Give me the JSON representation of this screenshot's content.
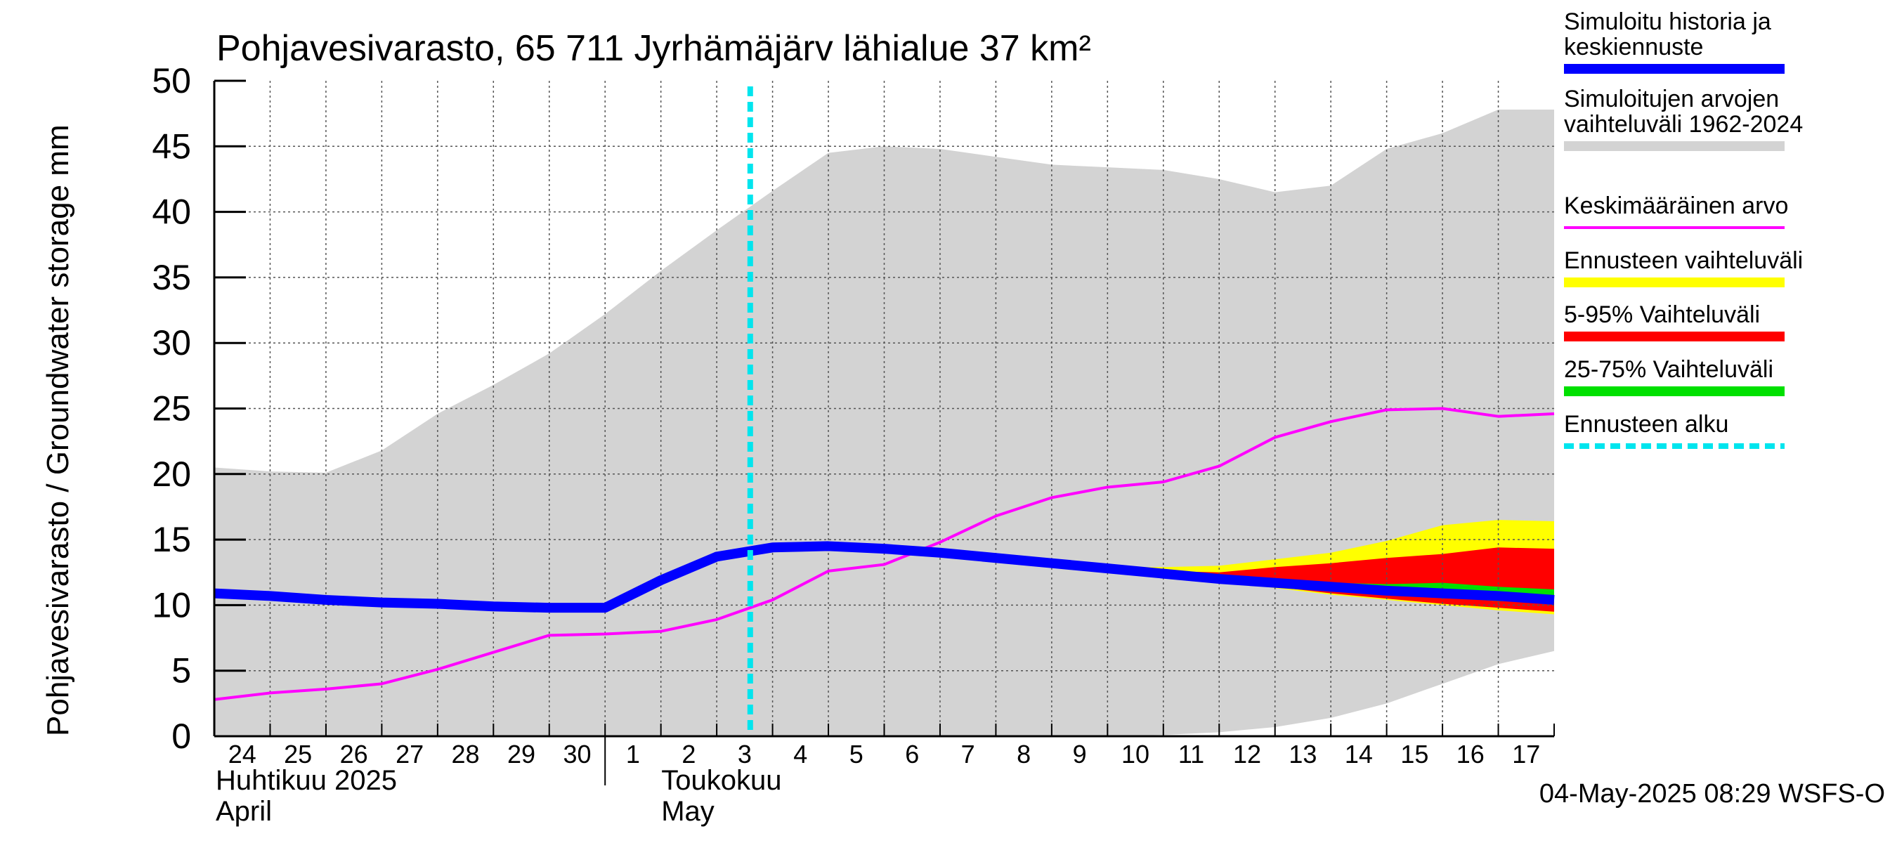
{
  "chart_data": {
    "type": "area",
    "title": "Pohjavesivarasto, 65 711 Jyrhämäjärv lähialue 37 km²",
    "ylabel": "Pohjavesivarasto / Groundwater storage   mm",
    "ylim": [
      0,
      50
    ],
    "yticks": [
      "0",
      "5",
      "10",
      "15",
      "20",
      "25",
      "30",
      "35",
      "40",
      "45",
      "50"
    ],
    "grid": true,
    "legend_position": "right",
    "x_start": "2025-04-24",
    "x_end": "2025-05-18",
    "x_tick_labels": [
      "24",
      "25",
      "26",
      "27",
      "28",
      "29",
      "30",
      "1",
      "2",
      "3",
      "4",
      "5",
      "6",
      "7",
      "8",
      "9",
      "10",
      "11",
      "12",
      "13",
      "14",
      "15",
      "16",
      "17"
    ],
    "x_month_labels": [
      {
        "fi": "Huhtikuu  2025",
        "en": "April"
      },
      {
        "fi": "Toukokuu",
        "en": "May"
      }
    ],
    "forecast_start": "2025-05-04",
    "footer": "04-May-2025 08:29 WSFS-O",
    "legend": [
      {
        "label": "Simuloitu historia ja keskiennuste",
        "color": "#0000ff"
      },
      {
        "label": "Simuloitujen arvojen vaihteluväli 1962-2024",
        "color": "#d3d3d3"
      },
      {
        "label": "Keskimääräinen arvo",
        "color": "#ff00ff"
      },
      {
        "label": "Ennusteen vaihteluväli",
        "color": "#ffff00"
      },
      {
        "label": "5-95% Vaihteluväli",
        "color": "#ff0000"
      },
      {
        "label": "25-75% Vaihteluväli",
        "color": "#00e000"
      },
      {
        "label": "Ennusteen alku",
        "color": "#00e5ee"
      }
    ],
    "series": [
      {
        "name": "Simuloitujen arvojen vaihteluväli 1962-2024",
        "kind": "band",
        "x": [
          "2025-04-24",
          "2025-04-25",
          "2025-04-26",
          "2025-04-27",
          "2025-04-28",
          "2025-04-29",
          "2025-04-30",
          "2025-05-01",
          "2025-05-02",
          "2025-05-03",
          "2025-05-04",
          "2025-05-05",
          "2025-05-06",
          "2025-05-07",
          "2025-05-08",
          "2025-05-09",
          "2025-05-10",
          "2025-05-11",
          "2025-05-12",
          "2025-05-13",
          "2025-05-14",
          "2025-05-15",
          "2025-05-16",
          "2025-05-17",
          "2025-05-18"
        ],
        "low": [
          0,
          0,
          0,
          0,
          0,
          0,
          0,
          0,
          0,
          0,
          0,
          0,
          0,
          0,
          0,
          0,
          0,
          0.1,
          0.3,
          0.7,
          1.4,
          2.5,
          4.0,
          5.5,
          6.5
        ],
        "high": [
          20.5,
          20.2,
          20.1,
          21.8,
          24.6,
          26.8,
          29.2,
          32.2,
          35.5,
          38.6,
          41.6,
          44.5,
          45.0,
          44.8,
          44.2,
          43.6,
          43.4,
          43.2,
          42.5,
          41.5,
          42.0,
          44.8,
          46.0,
          47.8,
          47.8
        ]
      },
      {
        "name": "Ennusteen vaihteluväli",
        "kind": "band",
        "x": [
          "2025-05-10",
          "2025-05-11",
          "2025-05-12",
          "2025-05-13",
          "2025-05-14",
          "2025-05-15",
          "2025-05-16",
          "2025-05-17",
          "2025-05-18"
        ],
        "low": [
          12.7,
          12.3,
          11.9,
          11.3,
          10.8,
          10.4,
          10.0,
          9.6,
          9.3
        ],
        "high": [
          12.9,
          12.9,
          13.0,
          13.5,
          14.0,
          14.9,
          16.1,
          16.5,
          16.4
        ]
      },
      {
        "name": "5-95% Vaihteluväli",
        "kind": "band",
        "x": [
          "2025-05-10",
          "2025-05-11",
          "2025-05-12",
          "2025-05-13",
          "2025-05-14",
          "2025-05-15",
          "2025-05-16",
          "2025-05-17",
          "2025-05-18"
        ],
        "low": [
          12.7,
          12.3,
          11.9,
          11.4,
          10.9,
          10.5,
          10.1,
          9.8,
          9.5
        ],
        "high": [
          12.8,
          12.6,
          12.5,
          12.9,
          13.2,
          13.6,
          13.9,
          14.4,
          14.3
        ]
      },
      {
        "name": "25-75% Vaihteluväli",
        "kind": "band",
        "x": [
          "2025-05-10",
          "2025-05-11",
          "2025-05-12",
          "2025-05-13",
          "2025-05-14",
          "2025-05-15",
          "2025-05-16",
          "2025-05-17",
          "2025-05-18"
        ],
        "low": [
          12.8,
          12.4,
          12.0,
          11.6,
          11.2,
          10.9,
          10.6,
          10.3,
          10.2
        ],
        "high": [
          12.9,
          12.5,
          12.2,
          11.9,
          11.7,
          11.6,
          11.7,
          11.4,
          11.2
        ]
      },
      {
        "name": "Keskimääräinen arvo",
        "kind": "line",
        "x": [
          "2025-04-24",
          "2025-04-25",
          "2025-04-26",
          "2025-04-27",
          "2025-04-28",
          "2025-04-29",
          "2025-04-30",
          "2025-05-01",
          "2025-05-02",
          "2025-05-03",
          "2025-05-04",
          "2025-05-05",
          "2025-05-06",
          "2025-05-07",
          "2025-05-08",
          "2025-05-09",
          "2025-05-10",
          "2025-05-11",
          "2025-05-12",
          "2025-05-13",
          "2025-05-14",
          "2025-05-15",
          "2025-05-16",
          "2025-05-17",
          "2025-05-18"
        ],
        "values": [
          2.8,
          3.3,
          3.6,
          4.0,
          5.1,
          6.4,
          7.7,
          7.8,
          8.0,
          8.9,
          10.4,
          12.6,
          13.1,
          14.8,
          16.8,
          18.2,
          19.0,
          19.4,
          20.6,
          22.8,
          24.0,
          24.9,
          25.0,
          24.4,
          24.6
        ]
      },
      {
        "name": "Simuloitu historia ja keskiennuste",
        "kind": "line",
        "x": [
          "2025-04-24",
          "2025-04-25",
          "2025-04-26",
          "2025-04-27",
          "2025-04-28",
          "2025-04-29",
          "2025-04-30",
          "2025-05-01",
          "2025-05-02",
          "2025-05-03",
          "2025-05-04",
          "2025-05-05",
          "2025-05-06",
          "2025-05-07",
          "2025-05-08",
          "2025-05-09",
          "2025-05-10",
          "2025-05-11",
          "2025-05-12",
          "2025-05-13",
          "2025-05-14",
          "2025-05-15",
          "2025-05-16",
          "2025-05-17",
          "2025-05-18"
        ],
        "values": [
          10.9,
          10.7,
          10.4,
          10.2,
          10.1,
          9.9,
          9.8,
          9.8,
          11.9,
          13.7,
          14.4,
          14.5,
          14.3,
          14.0,
          13.6,
          13.2,
          12.8,
          12.4,
          12.0,
          11.7,
          11.4,
          11.1,
          10.9,
          10.7,
          10.4
        ]
      }
    ]
  }
}
